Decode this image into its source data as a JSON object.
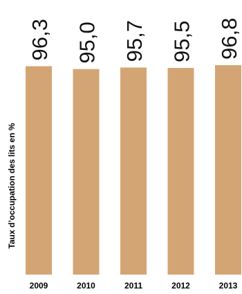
{
  "chart_data": {
    "type": "bar",
    "categories": [
      "2009",
      "2010",
      "2011",
      "2012",
      "2013"
    ],
    "values": [
      96.3,
      95.0,
      95.7,
      95.5,
      96.8
    ],
    "data_labels": [
      "96,3",
      "95,0",
      "95,7",
      "95,5",
      "96,8"
    ],
    "title": "",
    "xlabel": "",
    "ylabel": "Taux d’occupation des lits en %",
    "ylim": [
      0,
      100
    ],
    "grid": false,
    "legend": "none",
    "bar_color": "#d4a574"
  }
}
